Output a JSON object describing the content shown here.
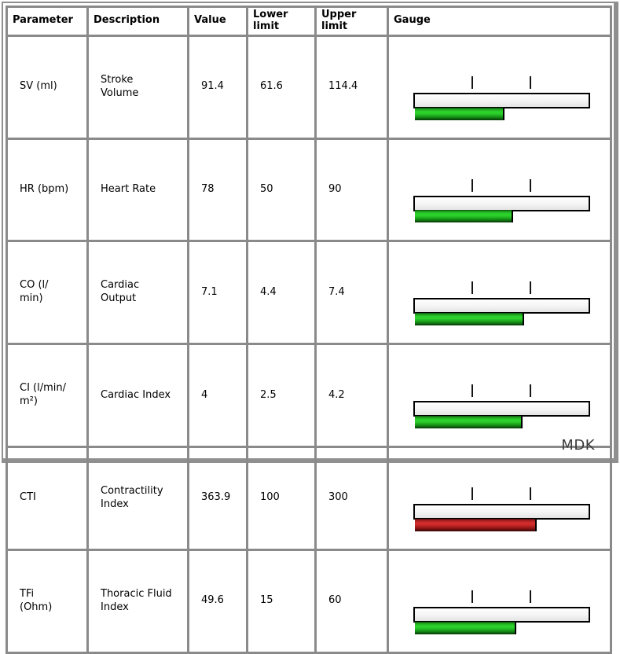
{
  "table": {
    "headers": [
      "Parameter",
      "Description",
      "Value",
      "Lower\nlimit",
      "Upper limit",
      "Gauge"
    ],
    "rows": [
      {
        "parameter": "SV (ml)",
        "description": "Stroke\nVolume",
        "value": "91.4",
        "lower": "61.6",
        "upper": "114.4",
        "gauge": {
          "fill_percent": 51.5,
          "status": "normal"
        }
      },
      {
        "parameter": "HR (bpm)",
        "description": "Heart Rate",
        "value": "78",
        "lower": "50",
        "upper": "90",
        "gauge": {
          "fill_percent": 56.5,
          "status": "normal"
        }
      },
      {
        "parameter": "CO (l/\nmin)",
        "description": "Cardiac\nOutput",
        "value": "7.1",
        "lower": "4.4",
        "upper": "7.4",
        "gauge": {
          "fill_percent": 63,
          "status": "normal"
        }
      },
      {
        "parameter": "CI (l/min/\nm²)",
        "description": "Cardiac Index",
        "value": "4",
        "lower": "2.5",
        "upper": "4.2",
        "gauge": {
          "fill_percent": 62,
          "status": "normal"
        }
      },
      {
        "parameter": "CTI",
        "description": "Contractility\nIndex",
        "value": "363.9",
        "lower": "100",
        "upper": "300",
        "gauge": {
          "fill_percent": 70,
          "status": "alarm"
        }
      },
      {
        "parameter": "TFi\n(Ohm)",
        "description": "Thoracic Fluid\nIndex",
        "value": "49.6",
        "lower": "15",
        "upper": "60",
        "gauge": {
          "fill_percent": 58.5,
          "status": "normal"
        }
      }
    ]
  },
  "gauge": {
    "tick_positions_percent": [
      33.3,
      66.4
    ],
    "normal_mid_color": "#2ccf2c",
    "alarm_mid_color": "#cf2c2c",
    "track_color": "#f1f1f1",
    "bar_border_color": "#000000"
  },
  "frame": {
    "border_color": "#8a8a8a"
  },
  "watermark": "MDK"
}
